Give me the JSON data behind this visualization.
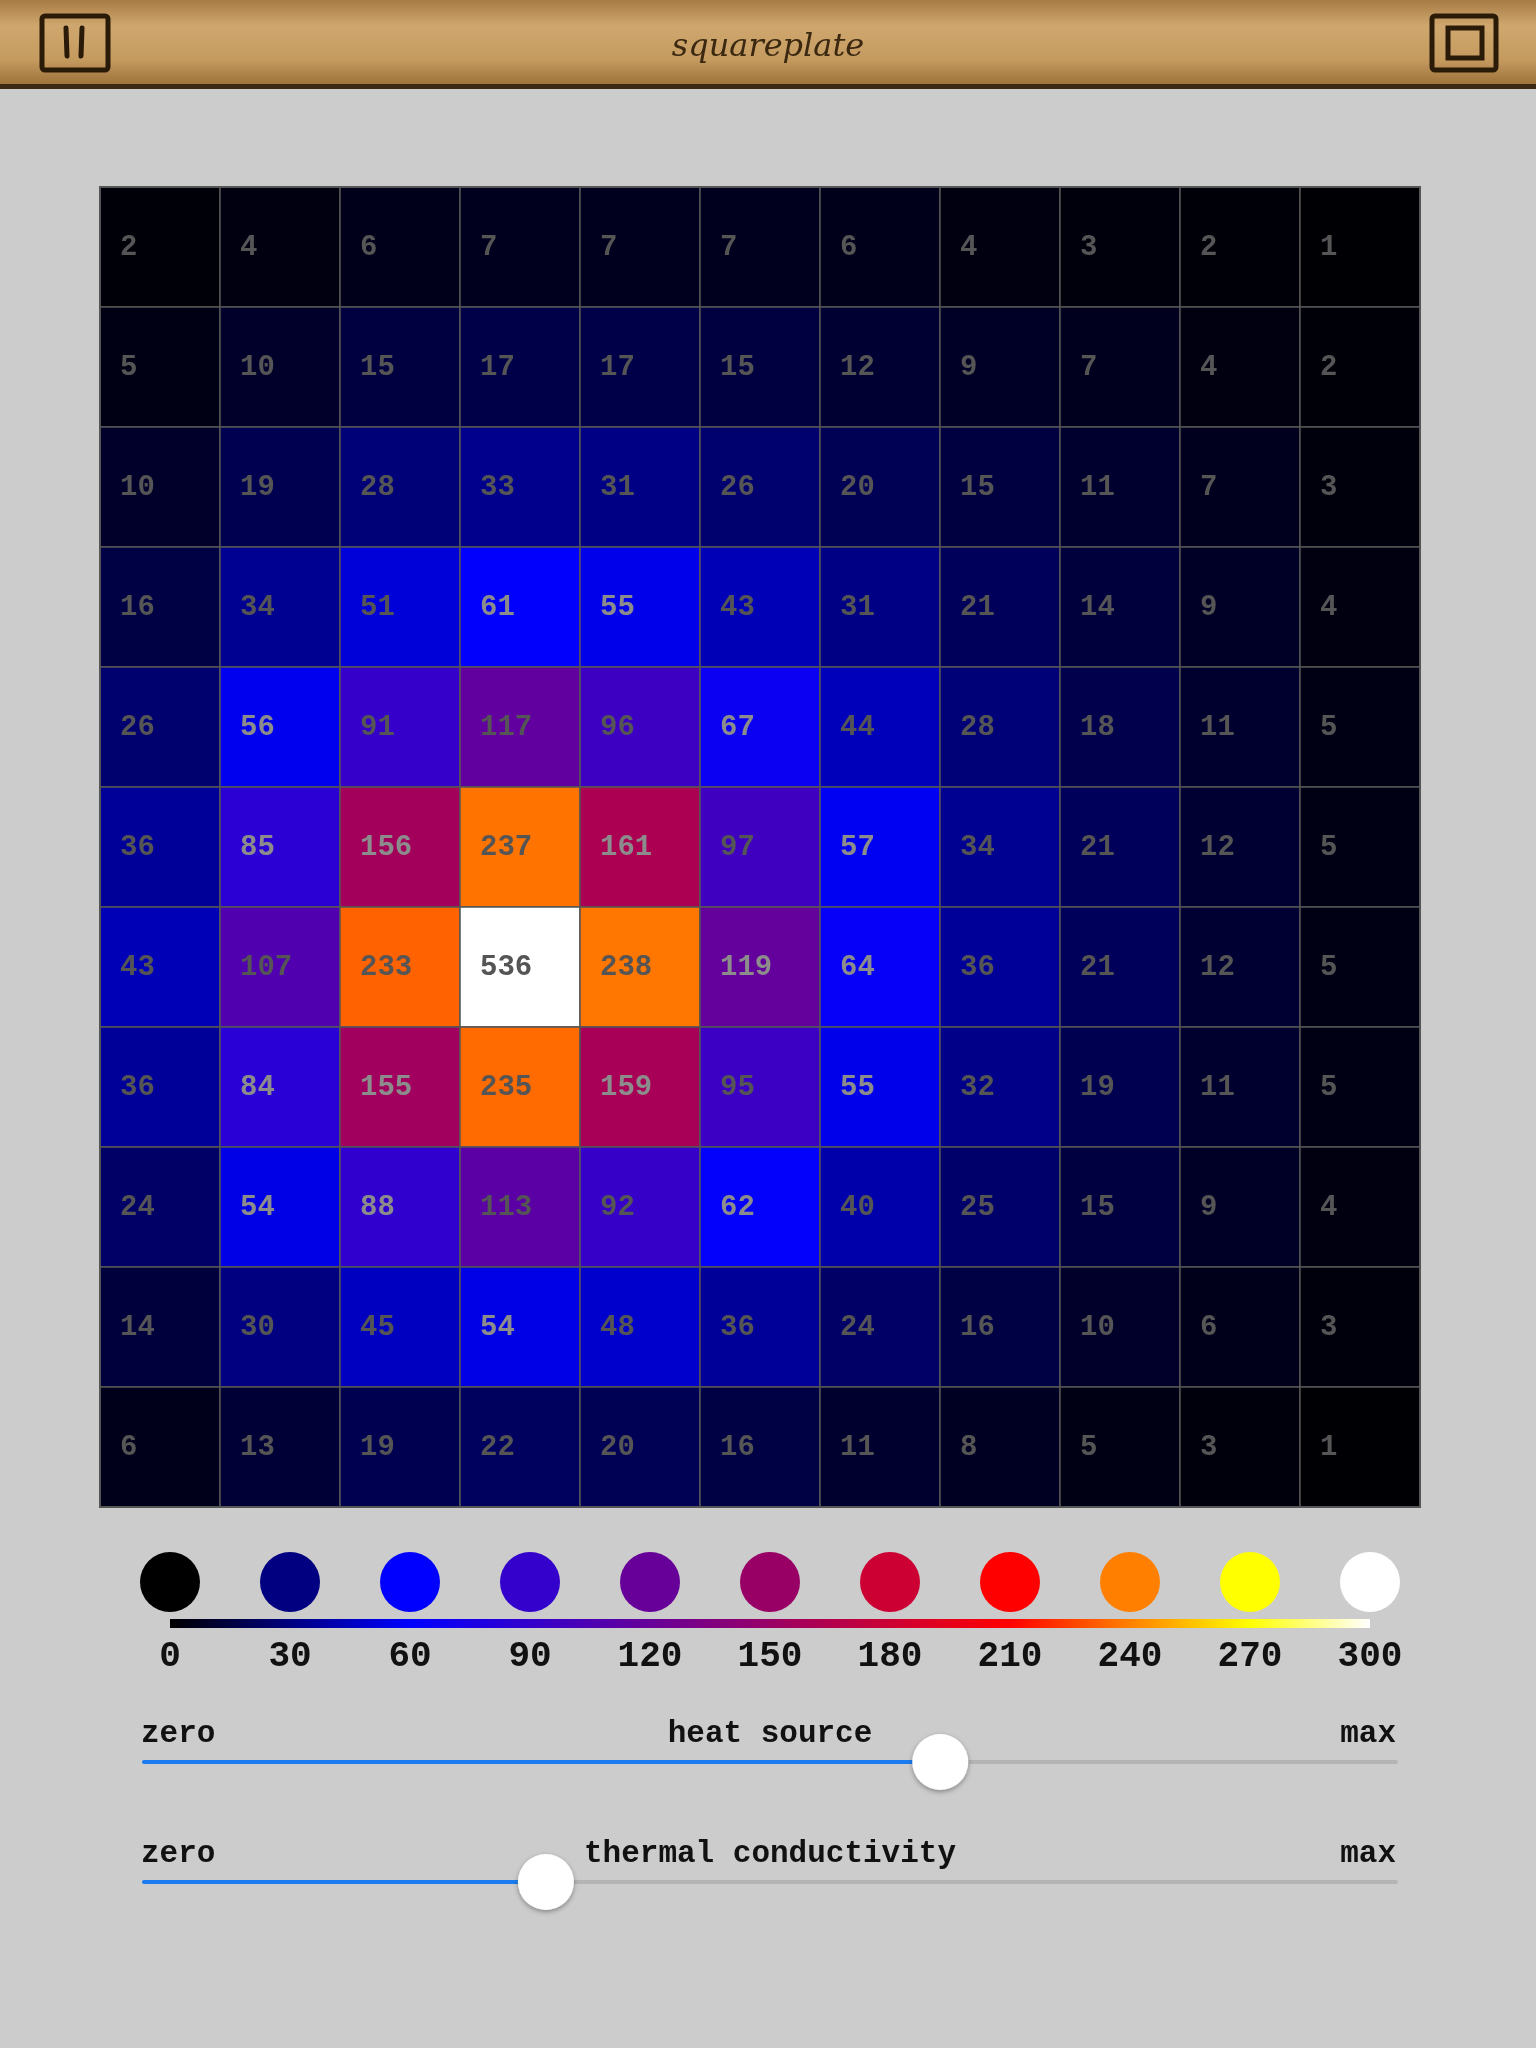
{
  "chart_data": {
    "type": "heatmap",
    "title": "squareplate",
    "categories": [
      null,
      null,
      null,
      null,
      null,
      null,
      null,
      null,
      null,
      null,
      null
    ],
    "y_categories": [
      null,
      null,
      null,
      null,
      null,
      null,
      null,
      null,
      null,
      null,
      null
    ],
    "cells": [
      [
        2,
        4,
        6,
        7,
        7,
        7,
        6,
        4,
        3,
        2,
        1
      ],
      [
        5,
        10,
        15,
        17,
        17,
        15,
        12,
        9,
        7,
        4,
        2
      ],
      [
        10,
        19,
        28,
        33,
        31,
        26,
        20,
        15,
        11,
        7,
        3
      ],
      [
        16,
        34,
        51,
        61,
        55,
        43,
        31,
        21,
        14,
        9,
        4
      ],
      [
        26,
        56,
        91,
        117,
        96,
        67,
        44,
        28,
        18,
        11,
        5
      ],
      [
        36,
        85,
        156,
        237,
        161,
        97,
        57,
        34,
        21,
        12,
        5
      ],
      [
        43,
        107,
        233,
        536,
        238,
        119,
        64,
        36,
        21,
        12,
        5
      ],
      [
        36,
        84,
        155,
        235,
        159,
        95,
        55,
        32,
        19,
        11,
        5
      ],
      [
        24,
        54,
        88,
        113,
        92,
        62,
        40,
        25,
        15,
        9,
        4
      ],
      [
        14,
        30,
        45,
        54,
        48,
        36,
        24,
        16,
        10,
        6,
        3
      ],
      [
        6,
        13,
        19,
        22,
        20,
        16,
        11,
        8,
        5,
        3,
        1
      ]
    ],
    "clim": [
      0,
      300
    ],
    "cticks": [
      0,
      30,
      60,
      90,
      120,
      150,
      180,
      210,
      240,
      270,
      300
    ],
    "colors": [
      "#000000",
      "#000080",
      "#0000ff",
      "#3300cc",
      "#660099",
      "#990066",
      "#cc0033",
      "#ff0000",
      "#ff8000",
      "#ffff00",
      "#ffffff"
    ],
    "data_labels": true,
    "annotations": [
      "zero",
      "heat source",
      "max",
      "zero",
      "thermal conductivity",
      "max"
    ]
  }
}
